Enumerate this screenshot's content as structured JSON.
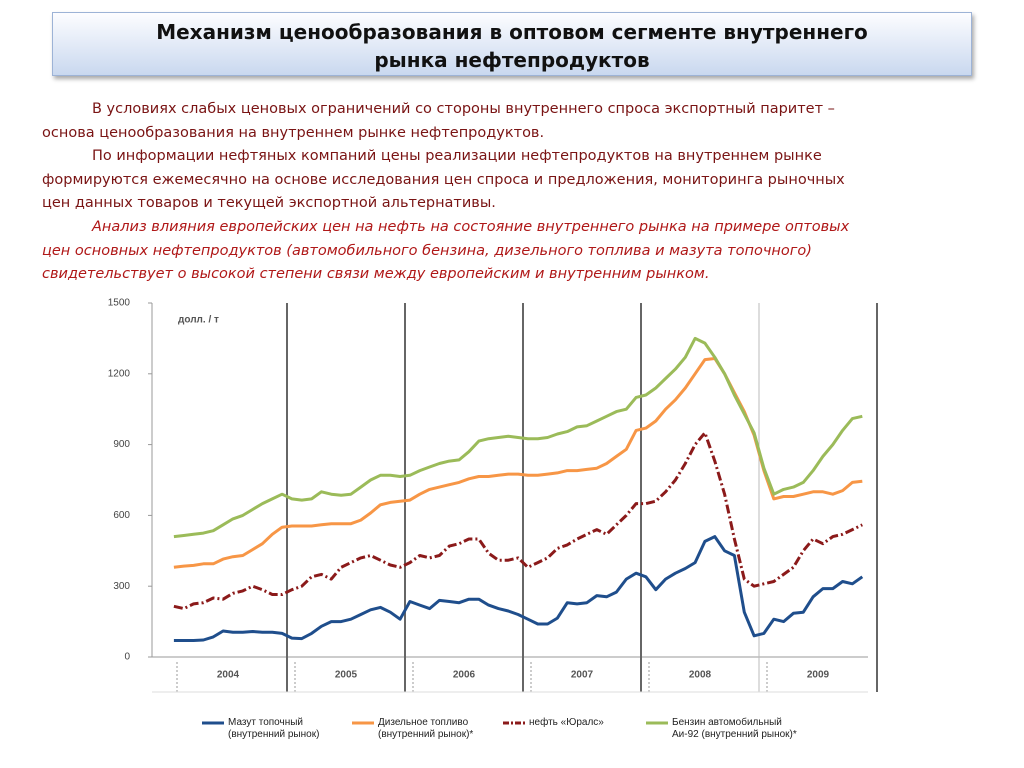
{
  "title_lines": [
    "Механизм ценообразования в оптовом сегменте внутреннего",
    "рынка нефтепродуктов"
  ],
  "paragraphs": [
    {
      "lines": [
        "В условиях слабых ценовых ограничений со стороны внутреннего спроса экспортный паритет –",
        "основа ценообразования на внутреннем рынке нефтепродуктов."
      ]
    },
    {
      "lines": [
        "По информации нефтяных компаний цены реализации нефтепродуктов на внутреннем рынке",
        "формируются ежемесячно на основе исследования цен спроса и предложения, мониторинга рыночных",
        "цен данных товаров и текущей экспортной альтернативы."
      ]
    },
    {
      "lines": [
        "Анализ влияния европейских цен на нефть на состояние внутреннего рынка на примере оптовых",
        "цен основных нефтепродуктов (автомобильного бензина, дизельного топлива и мазута топочного)",
        "свидетельствует о высокой степени связи между европейским и внутренним рынком."
      ]
    }
  ],
  "chart_data": {
    "type": "line",
    "y_label": "долл. / т",
    "ylim": [
      0,
      1500
    ],
    "yticks": [
      0,
      300,
      600,
      900,
      1200,
      1500
    ],
    "categories": [
      "2004",
      null,
      null,
      null,
      null,
      null,
      null,
      null,
      null,
      null,
      null,
      null,
      "2005",
      null,
      null,
      null,
      null,
      null,
      null,
      null,
      null,
      null,
      null,
      null,
      "2006",
      null,
      null,
      null,
      null,
      null,
      null,
      null,
      null,
      null,
      null,
      null,
      "2007",
      null,
      null,
      null,
      null,
      null,
      null,
      null,
      null,
      null,
      null,
      null,
      "2008",
      null,
      null,
      null,
      null,
      null,
      null,
      null,
      null,
      null,
      null,
      null,
      "2009",
      null,
      null,
      null,
      null,
      null,
      null,
      null,
      null,
      null,
      null,
      null
    ],
    "series": [
      {
        "name": "Мазут топочный\n(внутренний рынок)",
        "color": "#1f4e8c",
        "dash": false,
        "values": [
          70,
          70,
          70,
          72,
          85,
          110,
          105,
          105,
          108,
          105,
          105,
          100,
          80,
          78,
          100,
          130,
          150,
          150,
          160,
          180,
          200,
          210,
          190,
          160,
          235,
          220,
          205,
          240,
          235,
          230,
          245,
          245,
          220,
          205,
          195,
          180,
          160,
          140,
          140,
          165,
          230,
          225,
          230,
          260,
          255,
          275,
          330,
          355,
          340,
          285,
          330,
          355,
          375,
          400,
          490,
          510,
          450,
          430,
          190,
          90,
          100,
          160,
          150,
          185,
          190,
          255,
          290,
          290,
          320,
          310,
          340,
          null
        ]
      },
      {
        "name": "Дизельное топливо\n(внутренний рынок)*",
        "color": "#f79646",
        "dash": false,
        "values": [
          380,
          385,
          388,
          395,
          395,
          415,
          425,
          430,
          455,
          480,
          520,
          550,
          555,
          555,
          555,
          560,
          565,
          565,
          565,
          580,
          610,
          645,
          655,
          660,
          665,
          690,
          710,
          720,
          730,
          740,
          755,
          765,
          765,
          770,
          775,
          775,
          770,
          770,
          775,
          780,
          790,
          790,
          795,
          800,
          820,
          850,
          880,
          960,
          970,
          1000,
          1050,
          1090,
          1140,
          1200,
          1260,
          1265,
          1200,
          1120,
          1040,
          940,
          790,
          670,
          680,
          680,
          690,
          700,
          700,
          690,
          705,
          740,
          745,
          null
        ]
      },
      {
        "name": "нефть «Юралс»",
        "color": "#8b1a1a",
        "dash": true,
        "values": [
          215,
          205,
          225,
          230,
          250,
          245,
          270,
          280,
          300,
          285,
          265,
          265,
          285,
          300,
          340,
          350,
          330,
          380,
          400,
          420,
          430,
          410,
          390,
          380,
          400,
          430,
          420,
          430,
          470,
          480,
          500,
          500,
          440,
          410,
          410,
          420,
          380,
          400,
          420,
          460,
          475,
          500,
          520,
          540,
          520,
          560,
          600,
          650,
          650,
          660,
          700,
          750,
          820,
          900,
          950,
          830,
          690,
          500,
          330,
          300,
          310,
          320,
          350,
          380,
          450,
          500,
          480,
          510,
          520,
          540,
          560,
          null
        ]
      },
      {
        "name": "Бензин автомобильный\nАи-92 (внутренний рынок)*",
        "color": "#9bbb59",
        "dash": false,
        "values": [
          510,
          515,
          520,
          525,
          535,
          560,
          585,
          600,
          625,
          650,
          670,
          690,
          670,
          665,
          670,
          700,
          690,
          685,
          690,
          720,
          750,
          770,
          770,
          765,
          770,
          790,
          805,
          820,
          830,
          835,
          870,
          915,
          925,
          930,
          935,
          930,
          925,
          925,
          930,
          945,
          955,
          975,
          980,
          1000,
          1020,
          1040,
          1050,
          1100,
          1110,
          1140,
          1180,
          1220,
          1270,
          1350,
          1330,
          1270,
          1200,
          1110,
          1030,
          950,
          800,
          690,
          710,
          720,
          740,
          790,
          850,
          900,
          960,
          1010,
          1020,
          null
        ]
      }
    ]
  }
}
